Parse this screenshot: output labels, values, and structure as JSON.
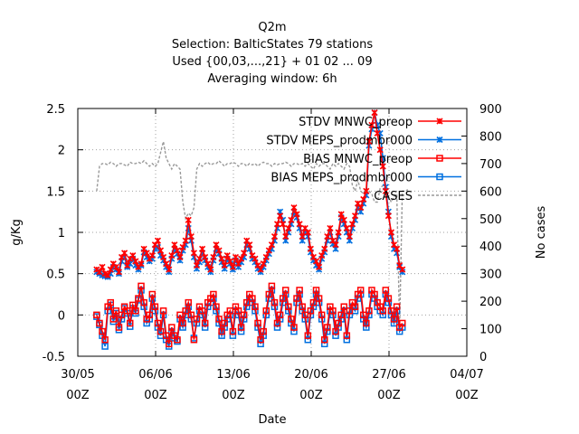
{
  "chart_data": {
    "type": "line",
    "title_lines": [
      "Q2m",
      "Selection: BalticStates     79 stations",
      "Used {00,03,...,21} + 01 02 ... 09",
      "Averaging window:  6h"
    ],
    "xlabel": "Date",
    "ylabel": "g/Kg",
    "y2label": "No cases",
    "x_ticks": [
      {
        "day": 0,
        "line1": "30/05",
        "line2": "00Z"
      },
      {
        "day": 7,
        "line1": "06/06",
        "line2": "00Z"
      },
      {
        "day": 14,
        "line1": "13/06",
        "line2": "00Z"
      },
      {
        "day": 21,
        "line1": "20/06",
        "line2": "00Z"
      },
      {
        "day": 28,
        "line1": "27/06",
        "line2": "00Z"
      },
      {
        "day": 35,
        "line1": "04/07",
        "line2": "00Z"
      }
    ],
    "xlim": [
      0,
      35
    ],
    "ylim": [
      -0.5,
      2.5
    ],
    "y_ticks": [
      "-0.5",
      "0",
      "0.5",
      "1",
      "1.5",
      "2",
      "2.5"
    ],
    "y2lim": [
      0,
      900
    ],
    "y2_ticks": [
      "0",
      "100",
      "200",
      "300",
      "400",
      "500",
      "600",
      "700",
      "800",
      "900"
    ],
    "grid": true,
    "legend_position": "top-right",
    "series": [
      {
        "name": "STDV MNWC_preop",
        "color": "#ff0000",
        "marker": "x",
        "axis": "left",
        "values": [
          0.55,
          0.52,
          0.58,
          0.5,
          0.48,
          0.55,
          0.62,
          0.58,
          0.52,
          0.7,
          0.75,
          0.6,
          0.68,
          0.72,
          0.65,
          0.58,
          0.62,
          0.8,
          0.75,
          0.68,
          0.72,
          0.85,
          0.9,
          0.78,
          0.7,
          0.62,
          0.55,
          0.72,
          0.85,
          0.78,
          0.7,
          0.82,
          0.9,
          1.15,
          0.95,
          0.75,
          0.6,
          0.68,
          0.8,
          0.7,
          0.62,
          0.55,
          0.7,
          0.85,
          0.78,
          0.68,
          0.6,
          0.72,
          0.65,
          0.58,
          0.7,
          0.62,
          0.68,
          0.75,
          0.9,
          0.85,
          0.72,
          0.68,
          0.6,
          0.55,
          0.62,
          0.7,
          0.78,
          0.85,
          0.95,
          1.1,
          1.2,
          1.1,
          0.95,
          1.05,
          1.15,
          1.3,
          1.22,
          1.1,
          0.95,
          1.05,
          1.0,
          0.8,
          0.7,
          0.65,
          0.58,
          0.72,
          0.8,
          0.95,
          1.05,
          0.9,
          0.85,
          1.0,
          1.22,
          1.15,
          1.05,
          0.95,
          1.1,
          1.2,
          1.35,
          1.3,
          1.4,
          1.5,
          2.1,
          2.3,
          2.45,
          2.2,
          2.0,
          1.8,
          1.5,
          1.2,
          1.0,
          0.85,
          0.8,
          0.6,
          0.55
        ]
      },
      {
        "name": "STDV MEPS_prodmbr000",
        "color": "#0070e0",
        "marker": "x",
        "axis": "left",
        "values": [
          0.52,
          0.5,
          0.48,
          0.47,
          0.46,
          0.5,
          0.58,
          0.55,
          0.5,
          0.65,
          0.7,
          0.58,
          0.62,
          0.68,
          0.6,
          0.55,
          0.6,
          0.76,
          0.7,
          0.65,
          0.68,
          0.8,
          0.82,
          0.72,
          0.66,
          0.58,
          0.52,
          0.68,
          0.8,
          0.74,
          0.66,
          0.78,
          0.85,
          1.05,
          0.9,
          0.7,
          0.56,
          0.64,
          0.75,
          0.66,
          0.58,
          0.52,
          0.66,
          0.8,
          0.74,
          0.64,
          0.56,
          0.68,
          0.62,
          0.55,
          0.66,
          0.58,
          0.64,
          0.7,
          0.85,
          0.8,
          0.68,
          0.64,
          0.56,
          0.52,
          0.58,
          0.66,
          0.74,
          0.8,
          0.9,
          1.05,
          1.25,
          1.15,
          0.9,
          1.0,
          1.1,
          1.25,
          1.18,
          1.05,
          0.9,
          1.0,
          0.95,
          0.76,
          0.66,
          0.6,
          0.55,
          0.68,
          0.76,
          0.9,
          1.0,
          0.86,
          0.8,
          0.95,
          1.18,
          1.1,
          1.0,
          0.9,
          1.05,
          1.15,
          1.3,
          1.25,
          1.35,
          1.45,
          2.05,
          2.25,
          2.45,
          2.3,
          2.2,
          1.9,
          1.55,
          1.25,
          0.95,
          0.8,
          0.75,
          0.58,
          0.52
        ]
      },
      {
        "name": "BIAS MNWC_preop",
        "color": "#ff0000",
        "marker": "square",
        "axis": "left",
        "values": [
          0.0,
          -0.1,
          -0.2,
          -0.3,
          0.1,
          0.15,
          -0.05,
          0.05,
          -0.15,
          0.0,
          0.1,
          0.05,
          -0.1,
          0.12,
          0.05,
          0.2,
          0.35,
          0.15,
          -0.05,
          0.0,
          0.25,
          0.1,
          -0.1,
          -0.2,
          0.05,
          -0.25,
          -0.35,
          -0.15,
          -0.25,
          -0.3,
          0.0,
          -0.1,
          0.05,
          0.15,
          0.0,
          -0.3,
          -0.05,
          0.1,
          0.05,
          -0.1,
          0.15,
          0.2,
          0.25,
          0.1,
          -0.05,
          -0.2,
          -0.1,
          0.0,
          0.05,
          -0.2,
          0.1,
          0.05,
          -0.15,
          0.0,
          0.15,
          0.25,
          0.2,
          0.1,
          -0.1,
          -0.3,
          -0.2,
          0.05,
          0.25,
          0.35,
          0.15,
          -0.1,
          0.0,
          0.2,
          0.3,
          0.1,
          -0.05,
          -0.15,
          0.2,
          0.3,
          0.1,
          0.0,
          -0.25,
          0.05,
          0.15,
          0.3,
          0.2,
          0.0,
          -0.3,
          -0.15,
          0.1,
          0.05,
          -0.2,
          -0.1,
          0.0,
          0.1,
          -0.25,
          0.05,
          0.15,
          0.1,
          0.25,
          0.3,
          0.0,
          -0.1,
          0.05,
          0.3,
          0.25,
          0.15,
          0.1,
          0.05,
          0.3,
          0.2,
          0.05,
          -0.05,
          0.1,
          -0.15,
          -0.1
        ]
      },
      {
        "name": "BIAS MEPS_prodmbr000",
        "color": "#0070e0",
        "marker": "square",
        "axis": "left",
        "values": [
          -0.02,
          -0.12,
          -0.25,
          -0.38,
          0.05,
          0.12,
          -0.08,
          0.02,
          -0.18,
          -0.05,
          0.08,
          0.02,
          -0.14,
          0.08,
          0.02,
          0.18,
          0.3,
          0.1,
          -0.1,
          -0.05,
          0.2,
          0.05,
          -0.15,
          -0.25,
          0.0,
          -0.3,
          -0.38,
          -0.2,
          -0.28,
          -0.32,
          -0.05,
          -0.15,
          0.0,
          0.1,
          -0.05,
          -0.28,
          -0.1,
          0.05,
          0.0,
          -0.15,
          0.1,
          0.15,
          0.2,
          0.05,
          -0.1,
          -0.25,
          -0.15,
          -0.05,
          0.0,
          -0.25,
          0.05,
          0.0,
          -0.2,
          -0.05,
          0.1,
          0.2,
          0.15,
          0.05,
          -0.15,
          -0.35,
          -0.25,
          0.0,
          0.2,
          0.3,
          0.1,
          -0.15,
          -0.05,
          0.15,
          0.25,
          0.05,
          -0.1,
          -0.2,
          0.15,
          0.25,
          0.05,
          -0.05,
          -0.3,
          0.0,
          0.1,
          0.25,
          0.15,
          -0.05,
          -0.35,
          -0.2,
          0.05,
          0.0,
          -0.25,
          -0.15,
          -0.05,
          0.05,
          -0.3,
          0.0,
          0.1,
          0.05,
          0.2,
          0.25,
          -0.05,
          -0.15,
          0.0,
          0.25,
          0.2,
          0.1,
          0.05,
          0.0,
          0.25,
          0.15,
          0.0,
          -0.1,
          0.05,
          -0.2,
          -0.15
        ]
      },
      {
        "name": "CASES",
        "color": "#999999",
        "marker": "none",
        "dash": true,
        "axis": "right",
        "values": [
          600,
          690,
          700,
          700,
          695,
          705,
          700,
          690,
          700,
          700,
          695,
          690,
          705,
          700,
          700,
          705,
          700,
          710,
          700,
          690,
          700,
          690,
          700,
          740,
          780,
          720,
          700,
          680,
          700,
          690,
          680,
          560,
          500,
          520,
          510,
          540,
          680,
          700,
          690,
          700,
          705,
          695,
          700,
          700,
          710,
          700,
          690,
          700,
          700,
          705,
          700,
          690,
          700,
          700,
          690,
          700,
          695,
          700,
          690,
          700,
          705,
          700,
          700,
          690,
          700,
          695,
          700,
          700,
          705,
          700,
          690,
          700,
          700,
          695,
          700,
          690,
          700,
          690,
          680,
          700,
          690,
          700,
          700,
          690,
          680,
          700,
          690,
          700,
          690,
          680,
          700,
          690,
          620,
          600,
          640,
          600,
          590,
          610,
          600,
          590,
          560,
          560,
          610,
          620,
          590,
          580,
          560,
          580,
          590,
          100,
          600,
          600,
          605
        ]
      }
    ]
  }
}
